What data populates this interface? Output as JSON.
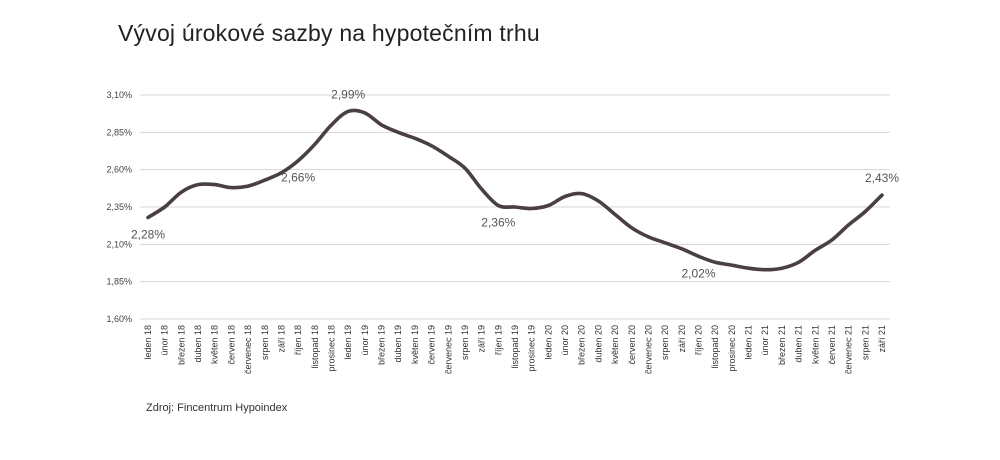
{
  "title": "Vývoj úrokové sazby na hypotečním trhu",
  "source": "Zdroj: Fincentrum Hypoindex",
  "chart_data": {
    "type": "line",
    "title": "Vývoj úrokové sazby na hypotečním trhu",
    "xlabel": "",
    "ylabel": "",
    "ylim": [
      1.6,
      3.1
    ],
    "yticks": [
      1.6,
      1.85,
      2.1,
      2.35,
      2.6,
      2.85,
      3.1
    ],
    "ytick_labels": [
      "1,60%",
      "1,85%",
      "2,10%",
      "2,35%",
      "2,60%",
      "2,85%",
      "3,10%"
    ],
    "grid": true,
    "line_color": "#4a3f42",
    "categories": [
      "leden 18",
      "únor 18",
      "březen 18",
      "duben 18",
      "květen 18",
      "červen 18",
      "červenec 18",
      "srpen 18",
      "září 18",
      "říjen 18",
      "listopad 18",
      "prosinec 18",
      "leden 19",
      "únor 19",
      "březen 19",
      "duben 19",
      "květen 19",
      "červen 19",
      "červenec 19",
      "srpen 19",
      "září 19",
      "říjen 19",
      "listopad 19",
      "prosinec 19",
      "leden 20",
      "únor 20",
      "březen 20",
      "duben 20",
      "květen 20",
      "červen 20",
      "červenec 20",
      "srpen 20",
      "září 20",
      "říjen 20",
      "listopad 20",
      "prosinec 20",
      "leden 21",
      "únor 21",
      "březen 21",
      "duben 21",
      "květen 21",
      "červen 21",
      "červenec 21",
      "srpen 21",
      "září 21"
    ],
    "series": [
      {
        "values": [
          2.28,
          2.35,
          2.45,
          2.5,
          2.5,
          2.48,
          2.49,
          2.53,
          2.58,
          2.66,
          2.77,
          2.9,
          2.99,
          2.98,
          2.9,
          2.85,
          2.81,
          2.76,
          2.69,
          2.61,
          2.47,
          2.36,
          2.35,
          2.34,
          2.36,
          2.42,
          2.44,
          2.39,
          2.3,
          2.21,
          2.15,
          2.11,
          2.07,
          2.02,
          1.98,
          1.96,
          1.94,
          1.93,
          1.94,
          1.98,
          2.06,
          2.13,
          2.23,
          2.32,
          2.43
        ]
      }
    ],
    "annotations": [
      {
        "index": 0,
        "text": "2,28%",
        "pos": "below"
      },
      {
        "index": 9,
        "text": "2,66%",
        "pos": "below"
      },
      {
        "index": 12,
        "text": "2,99%",
        "pos": "above"
      },
      {
        "index": 21,
        "text": "2,36%",
        "pos": "below"
      },
      {
        "index": 33,
        "text": "2,02%",
        "pos": "below"
      },
      {
        "index": 44,
        "text": "2,43%",
        "pos": "above"
      }
    ]
  }
}
